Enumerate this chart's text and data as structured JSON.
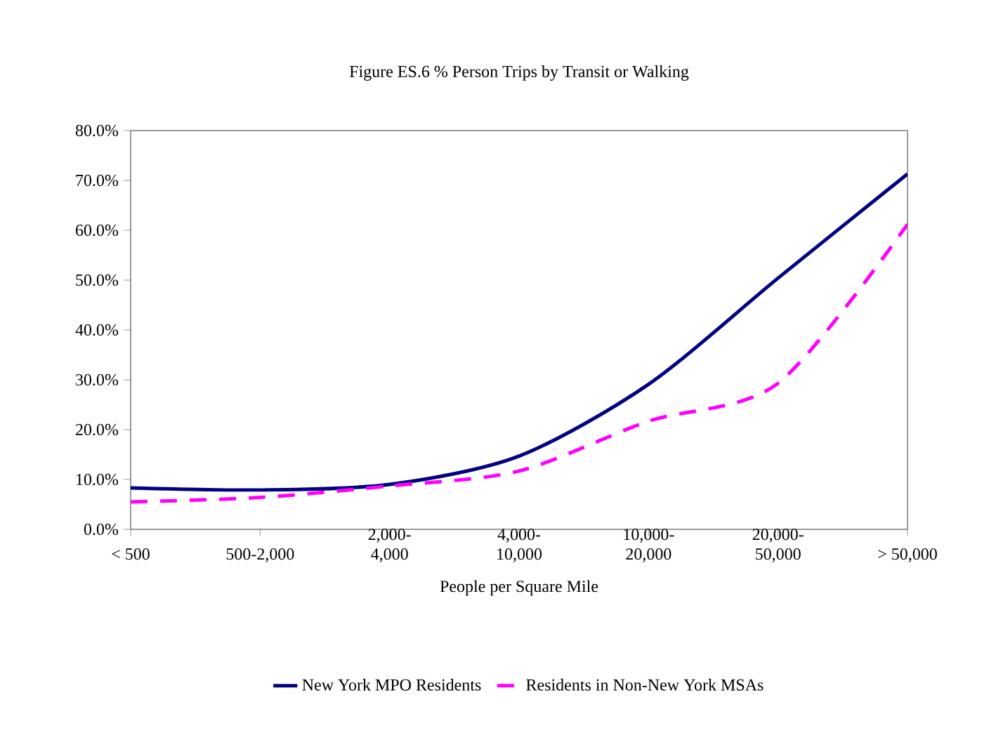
{
  "chart_data": {
    "type": "line",
    "title": "Figure ES.6  % Person Trips by Transit or Walking",
    "xlabel": "People per Square Mile",
    "categories": [
      "< 500",
      "500-2,000",
      "2,000-\n4,000",
      "4,000-\n10,000",
      "10,000-\n20,000",
      "20,000-\n50,000",
      "> 50,000"
    ],
    "series": [
      {
        "name": "New York MPO Residents",
        "color": "#000080",
        "line_style": "solid",
        "values": [
          8.3,
          7.9,
          9.0,
          14.7,
          29.1,
          50.4,
          71.3
        ]
      },
      {
        "name": "Residents in Non-New York MSAs",
        "color": "#ff00ff",
        "line_style": "dashed",
        "values": [
          5.5,
          6.4,
          8.7,
          11.7,
          21.7,
          29.3,
          61.2
        ]
      }
    ],
    "ylim": [
      0,
      80
    ],
    "yticks": [
      {
        "value": 0,
        "label": "0.0%"
      },
      {
        "value": 10,
        "label": "10.0%"
      },
      {
        "value": 20,
        "label": "20.0%"
      },
      {
        "value": 30,
        "label": "30.0%"
      },
      {
        "value": 40,
        "label": "40.0%"
      },
      {
        "value": 50,
        "label": "50.0%"
      },
      {
        "value": 60,
        "label": "60.0%"
      },
      {
        "value": 70,
        "label": "70.0%"
      },
      {
        "value": 80,
        "label": "80.0%"
      }
    ],
    "grid": false,
    "legend": "bottom",
    "marker": "none"
  }
}
